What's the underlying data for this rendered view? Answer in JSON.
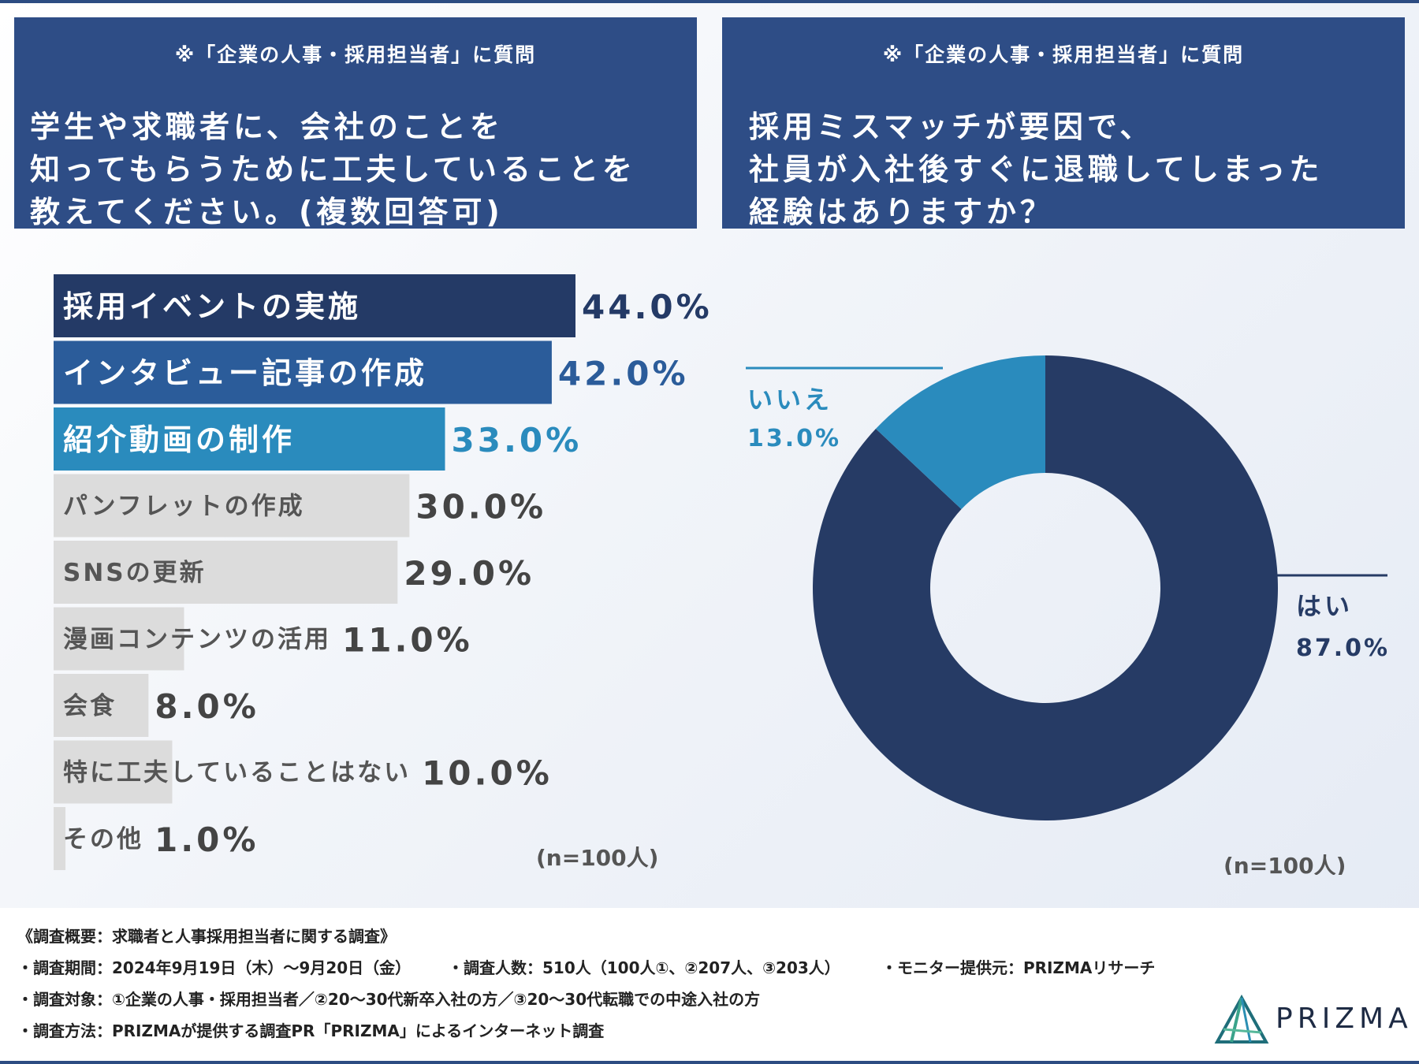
{
  "left_panel": {
    "note": "※「企業の人事・採用担当者」に質問",
    "question": "学生や求職者に、会社のことを\n知ってもらうために工夫していることを\n教えてください。(複数回答可)"
  },
  "right_panel": {
    "note": "※「企業の人事・採用担当者」に質問",
    "question": "採用ミスマッチが要因で、\n社員が入社後すぐに退職してしまった\n経験はありますか？"
  },
  "colors": {
    "dark_navy": "#243a66",
    "mid_blue": "#2b5c9a",
    "light_blue": "#2a8bbd",
    "gray_bar": "#dcdcdc",
    "gray_text": "#555555"
  },
  "chart_data": [
    {
      "type": "bar",
      "orientation": "horizontal",
      "categories": [
        "採用イベントの実施",
        "インタビュー記事の作成",
        "紹介動画の制作",
        "パンフレットの作成",
        "SNSの更新",
        "漫画コンテンツの活用",
        "会食",
        "特に工夫していることはない",
        "その他"
      ],
      "values": [
        44.0,
        42.0,
        33.0,
        30.0,
        29.0,
        11.0,
        8.0,
        10.0,
        1.0
      ],
      "value_labels": [
        "44.0%",
        "42.0%",
        "33.0%",
        "30.0%",
        "29.0%",
        "11.0%",
        "8.0%",
        "10.0%",
        "1.0%"
      ],
      "highlight": [
        "dark_navy",
        "mid_blue",
        "light_blue",
        "gray_bar",
        "gray_bar",
        "gray_bar",
        "gray_bar",
        "gray_bar",
        "gray_bar"
      ],
      "xlim": [
        0,
        44
      ],
      "sample_note": "(n=100人)"
    },
    {
      "type": "pie",
      "style": "donut",
      "categories": [
        "はい",
        "いいえ"
      ],
      "values": [
        87.0,
        13.0
      ],
      "value_labels": [
        "87.0%",
        "13.0%"
      ],
      "colors": [
        "#263b65",
        "#2a8bbd"
      ],
      "sample_note": "(n=100人)"
    }
  ],
  "footer": {
    "title": "《調査概要：求職者と人事採用担当者に関する調査》",
    "period": "・調査期間：2024年9月19日（木）～9月20日（金）",
    "count": "・調査人数：510人（100人①、②207人、③203人）",
    "provider": "・モニター提供元：PRIZMAリサーチ",
    "target": "・調査対象：①企業の人事・採用担当者／②20～30代新卒入社の方／③20～30代転職での中途入社の方",
    "method": "・調査方法：PRIZMAが提供する調査PR「PRIZMA」によるインターネット調査",
    "logo_text": "PRIZMA",
    "logo_icon": "prism-triangle-icon"
  }
}
